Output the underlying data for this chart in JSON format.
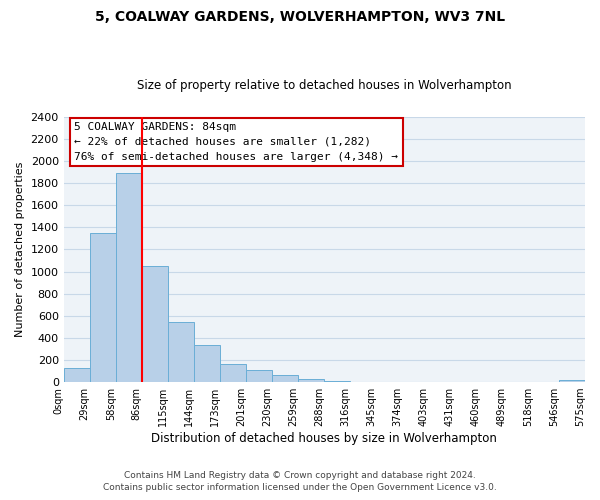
{
  "title": "5, COALWAY GARDENS, WOLVERHAMPTON, WV3 7NL",
  "subtitle": "Size of property relative to detached houses in Wolverhampton",
  "xlabel": "Distribution of detached houses by size in Wolverhampton",
  "ylabel": "Number of detached properties",
  "footer_line1": "Contains HM Land Registry data © Crown copyright and database right 2024.",
  "footer_line2": "Contains public sector information licensed under the Open Government Licence v3.0.",
  "bin_labels": [
    "0sqm",
    "29sqm",
    "58sqm",
    "86sqm",
    "115sqm",
    "144sqm",
    "173sqm",
    "201sqm",
    "230sqm",
    "259sqm",
    "288sqm",
    "316sqm",
    "345sqm",
    "374sqm",
    "403sqm",
    "431sqm",
    "460sqm",
    "489sqm",
    "518sqm",
    "546sqm",
    "575sqm"
  ],
  "bin_counts": [
    125,
    1350,
    1890,
    1050,
    540,
    335,
    160,
    105,
    60,
    30,
    10,
    5,
    0,
    0,
    0,
    0,
    0,
    0,
    0,
    20
  ],
  "bar_color": "#b8d0e8",
  "bar_edge_color": "#6aaed6",
  "red_line_index": 3,
  "annotation_text_line1": "5 COALWAY GARDENS: 84sqm",
  "annotation_text_line2": "← 22% of detached houses are smaller (1,282)",
  "annotation_text_line3": "76% of semi-detached houses are larger (4,348) →",
  "ylim": [
    0,
    2400
  ],
  "yticks": [
    0,
    200,
    400,
    600,
    800,
    1000,
    1200,
    1400,
    1600,
    1800,
    2000,
    2200,
    2400
  ],
  "bg_color": "#ffffff",
  "plot_bg_color": "#eef3f8",
  "grid_color": "#c8d8e8",
  "annotation_box_color": "#ffffff",
  "annotation_box_edge_color": "#cc0000",
  "title_fontsize": 10,
  "subtitle_fontsize": 8.5,
  "ylabel_fontsize": 8,
  "xlabel_fontsize": 8.5,
  "ytick_fontsize": 8,
  "xtick_fontsize": 7,
  "footer_fontsize": 6.5,
  "annotation_fontsize": 8
}
